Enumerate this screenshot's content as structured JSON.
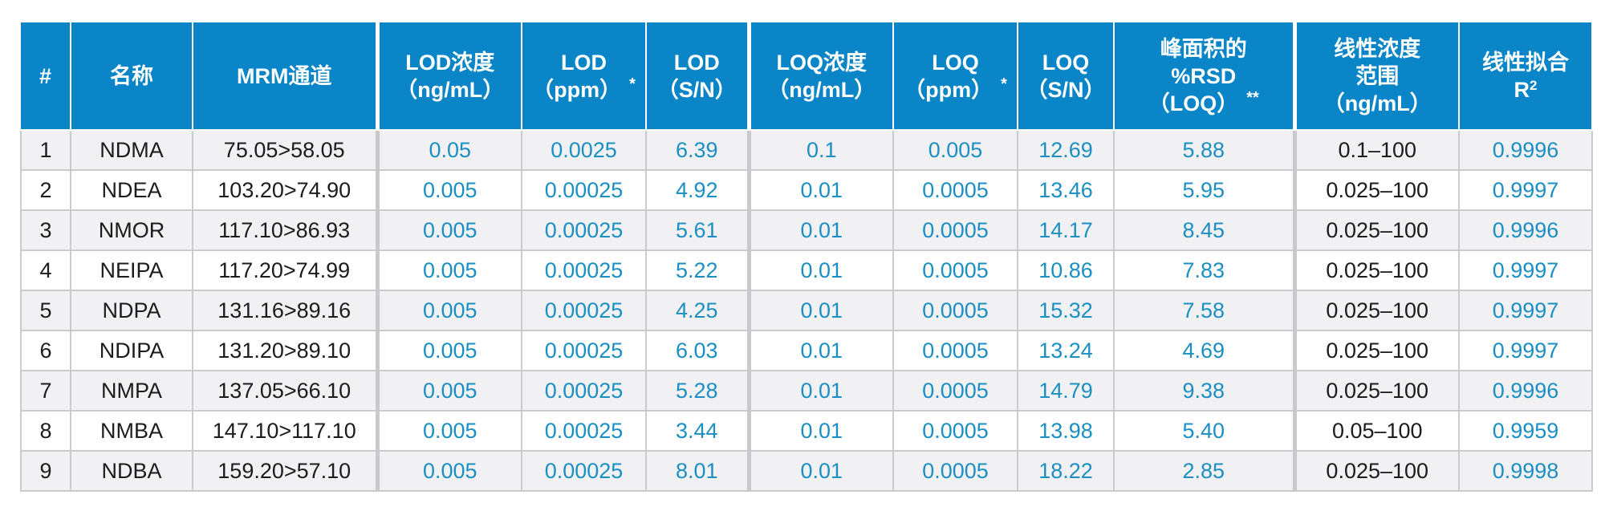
{
  "table": {
    "headers": {
      "num": "#",
      "name": "名称",
      "mrm": "MRM通道",
      "lod_conc": [
        "LOD浓度",
        "（ng/mL）"
      ],
      "lod_ppm": [
        "LOD",
        "（ppm）"
      ],
      "lod_ppm_star": "*",
      "lod_sn": [
        "LOD",
        "（S/N）"
      ],
      "loq_conc": [
        "LOQ浓度",
        "（ng/mL）"
      ],
      "loq_ppm": [
        "LOQ",
        "（ppm）"
      ],
      "loq_ppm_star": "*",
      "loq_sn": [
        "LOQ",
        "（S/N）"
      ],
      "rsd": [
        "峰面积的",
        "%RSD",
        "（LOQ）"
      ],
      "rsd_star": "**",
      "range": [
        "线性浓度",
        "范围",
        "（ng/mL）"
      ],
      "r2": [
        "线性拟合",
        "R",
        "2"
      ]
    },
    "rows": [
      {
        "num": "1",
        "name": "NDMA",
        "mrm": "75.05>58.05",
        "lod_conc": "0.05",
        "lod_ppm": "0.0025",
        "lod_sn": "6.39",
        "loq_conc": "0.1",
        "loq_ppm": "0.005",
        "loq_sn": "12.69",
        "rsd": "5.88",
        "range": "0.1–100",
        "r2": "0.9996"
      },
      {
        "num": "2",
        "name": "NDEA",
        "mrm": "103.20>74.90",
        "lod_conc": "0.005",
        "lod_ppm": "0.00025",
        "lod_sn": "4.92",
        "loq_conc": "0.01",
        "loq_ppm": "0.0005",
        "loq_sn": "13.46",
        "rsd": "5.95",
        "range": "0.025–100",
        "r2": "0.9997"
      },
      {
        "num": "3",
        "name": "NMOR",
        "mrm": "117.10>86.93",
        "lod_conc": "0.005",
        "lod_ppm": "0.00025",
        "lod_sn": "5.61",
        "loq_conc": "0.01",
        "loq_ppm": "0.0005",
        "loq_sn": "14.17",
        "rsd": "8.45",
        "range": "0.025–100",
        "r2": "0.9996"
      },
      {
        "num": "4",
        "name": "NEIPA",
        "mrm": "117.20>74.99",
        "lod_conc": "0.005",
        "lod_ppm": "0.00025",
        "lod_sn": "5.22",
        "loq_conc": "0.01",
        "loq_ppm": "0.0005",
        "loq_sn": "10.86",
        "rsd": "7.83",
        "range": "0.025–100",
        "r2": "0.9997"
      },
      {
        "num": "5",
        "name": "NDPA",
        "mrm": "131.16>89.16",
        "lod_conc": "0.005",
        "lod_ppm": "0.00025",
        "lod_sn": "4.25",
        "loq_conc": "0.01",
        "loq_ppm": "0.0005",
        "loq_sn": "15.32",
        "rsd": "7.58",
        "range": "0.025–100",
        "r2": "0.9997"
      },
      {
        "num": "6",
        "name": "NDIPA",
        "mrm": "131.20>89.10",
        "lod_conc": "0.005",
        "lod_ppm": "0.00025",
        "lod_sn": "6.03",
        "loq_conc": "0.01",
        "loq_ppm": "0.0005",
        "loq_sn": "13.24",
        "rsd": "4.69",
        "range": "0.025–100",
        "r2": "0.9997"
      },
      {
        "num": "7",
        "name": "NMPA",
        "mrm": "137.05>66.10",
        "lod_conc": "0.005",
        "lod_ppm": "0.00025",
        "lod_sn": "5.28",
        "loq_conc": "0.01",
        "loq_ppm": "0.0005",
        "loq_sn": "14.79",
        "rsd": "9.38",
        "range": "0.025–100",
        "r2": "0.9996"
      },
      {
        "num": "8",
        "name": "NMBA",
        "mrm": "147.10>117.10",
        "lod_conc": "0.005",
        "lod_ppm": "0.00025",
        "lod_sn": "3.44",
        "loq_conc": "0.01",
        "loq_ppm": "0.0005",
        "loq_sn": "13.98",
        "rsd": "5.40",
        "range": "0.05–100",
        "r2": "0.9959"
      },
      {
        "num": "9",
        "name": "NDBA",
        "mrm": "159.20>57.10",
        "lod_conc": "0.005",
        "lod_ppm": "0.00025",
        "lod_sn": "8.01",
        "loq_conc": "0.01",
        "loq_ppm": "0.0005",
        "loq_sn": "18.22",
        "rsd": "2.85",
        "range": "0.025–100",
        "r2": "0.9998"
      }
    ]
  },
  "colors": {
    "header_bg": "#0a85c7",
    "value_blue": "#1b8fc4",
    "row_alt": "#f1f1f3"
  }
}
